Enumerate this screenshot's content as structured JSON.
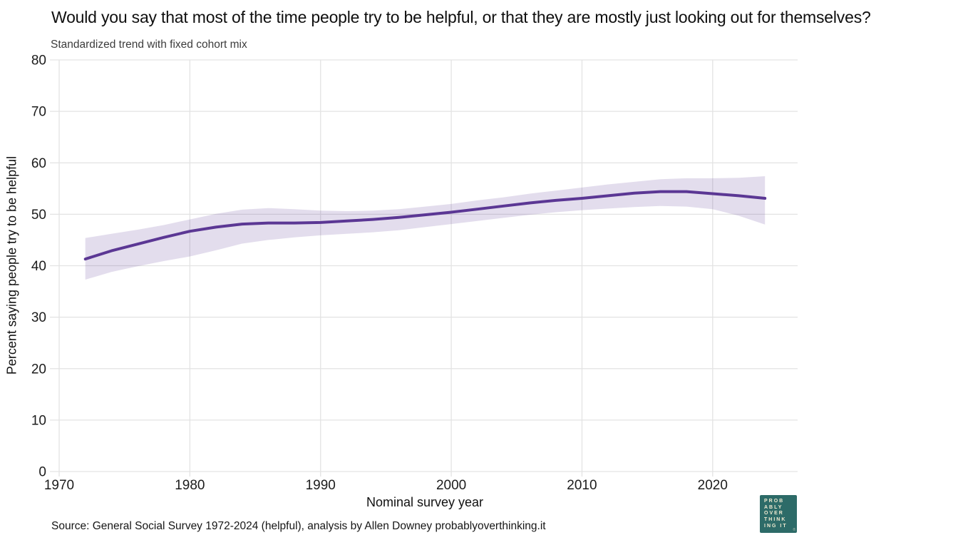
{
  "source_note": "Source: General Social Survey 1972-2024 (helpful), analysis by Allen Downey probablyoverthinking.it",
  "logo": {
    "lines": [
      "PROB",
      "ABLY",
      "OVER",
      "THINK",
      "ING IT"
    ],
    "mark": "®",
    "bg_color": "#2d6b68",
    "text_color": "#f1ebd1"
  },
  "chart_data": {
    "type": "line",
    "title": "Would you say that most of the time people try to be helpful, or that they are mostly just looking out for themselves?",
    "subtitle": "Standardized trend with fixed cohort mix",
    "xlabel": "Nominal survey year",
    "ylabel": "Percent saying people try to be helpful",
    "x": [
      1972,
      1974,
      1976,
      1978,
      1980,
      1982,
      1984,
      1986,
      1988,
      1990,
      1992,
      1994,
      1996,
      1998,
      2000,
      2002,
      2004,
      2006,
      2008,
      2010,
      2012,
      2014,
      2016,
      2018,
      2020,
      2022,
      2024
    ],
    "series": [
      {
        "name": "Standardized trend",
        "values": [
          41.3,
          42.9,
          44.2,
          45.5,
          46.7,
          47.5,
          48.1,
          48.3,
          48.3,
          48.4,
          48.7,
          49.0,
          49.4,
          49.9,
          50.4,
          51.0,
          51.6,
          52.2,
          52.7,
          53.1,
          53.6,
          54.1,
          54.4,
          54.4,
          54.0,
          53.6,
          53.1
        ]
      }
    ],
    "band": {
      "name": "confidence interval",
      "lo": [
        37.3,
        38.8,
        39.9,
        40.9,
        41.8,
        43.0,
        44.3,
        45.0,
        45.5,
        45.9,
        46.2,
        46.5,
        46.9,
        47.5,
        48.1,
        48.7,
        49.3,
        49.9,
        50.4,
        50.8,
        51.1,
        51.4,
        51.6,
        51.5,
        51.0,
        49.7,
        48.0
      ],
      "hi": [
        45.4,
        46.2,
        47.0,
        47.9,
        49.0,
        50.1,
        50.9,
        51.2,
        51.0,
        50.7,
        50.6,
        50.7,
        51.0,
        51.5,
        52.0,
        52.7,
        53.3,
        54.0,
        54.6,
        55.2,
        55.8,
        56.3,
        56.8,
        57.0,
        57.0,
        57.1,
        57.4
      ]
    },
    "xticks": [
      1970,
      1980,
      1990,
      2000,
      2010,
      2020
    ],
    "yticks": [
      0,
      10,
      20,
      30,
      40,
      50,
      60,
      70,
      80
    ],
    "xlim": [
      1970,
      2026.5
    ],
    "ylim": [
      0,
      80
    ],
    "grid": true,
    "legend": "none",
    "line_color": "#5b3794",
    "band_color": "#5b3794",
    "band_opacity": 0.17,
    "grid_color": "#e3e3e3"
  }
}
